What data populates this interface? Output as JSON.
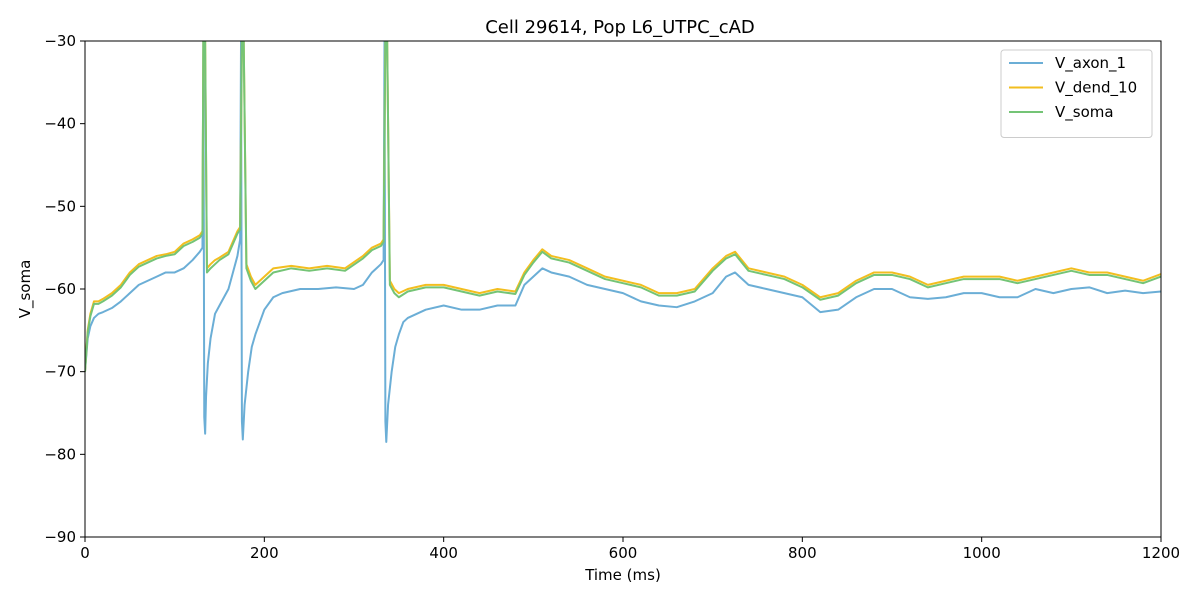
{
  "chart_data": {
    "type": "line",
    "title": "Cell 29614, Pop L6_UTPC_cAD",
    "xlabel": "Time (ms)",
    "ylabel": "V_soma",
    "xlim": [
      0,
      1200
    ],
    "ylim": [
      -90,
      -30
    ],
    "xticks": [
      0,
      200,
      400,
      600,
      800,
      1000,
      1200
    ],
    "yticks": [
      -90,
      -80,
      -70,
      -60,
      -50,
      -40,
      -30
    ],
    "grid": false,
    "legend_position": "top-right",
    "series": [
      {
        "name": "V_axon_1",
        "color": "#6baed6",
        "x": [
          0,
          3,
          6,
          10,
          15,
          20,
          30,
          40,
          50,
          60,
          70,
          80,
          90,
          100,
          110,
          120,
          128,
          131,
          132,
          133,
          134,
          135,
          137,
          140,
          145,
          150,
          155,
          160,
          165,
          170,
          173,
          174,
          175,
          176,
          178,
          182,
          186,
          190,
          195,
          200,
          210,
          220,
          240,
          260,
          280,
          300,
          310,
          320,
          325,
          330,
          333,
          334,
          335,
          336,
          338,
          342,
          346,
          350,
          355,
          360,
          370,
          380,
          400,
          420,
          440,
          460,
          480,
          490,
          500,
          510,
          520,
          540,
          560,
          580,
          600,
          620,
          640,
          660,
          680,
          700,
          715,
          725,
          740,
          760,
          780,
          800,
          820,
          840,
          860,
          880,
          900,
          920,
          940,
          960,
          980,
          1000,
          1020,
          1040,
          1060,
          1080,
          1100,
          1120,
          1140,
          1160,
          1180,
          1200
        ],
        "y": [
          -70,
          -66,
          -64.5,
          -63.5,
          -63,
          -62.8,
          -62.3,
          -61.5,
          -60.5,
          -59.5,
          -59,
          -58.5,
          -58,
          -58,
          -57.5,
          -56.5,
          -55.5,
          -55,
          -30,
          -75.5,
          -77.5,
          -73,
          -69,
          -66,
          -63,
          -62,
          -61,
          -60,
          -58,
          -56,
          -54,
          -30,
          -76,
          -78.2,
          -74,
          -70,
          -67,
          -65.5,
          -64,
          -62.5,
          -61,
          -60.5,
          -60,
          -60,
          -59.8,
          -60,
          -59.5,
          -58,
          -57.5,
          -57,
          -56.5,
          -30,
          -76,
          -78.5,
          -74,
          -70,
          -67,
          -65.5,
          -64,
          -63.5,
          -63,
          -62.5,
          -62,
          -62.5,
          -62.5,
          -62,
          -62,
          -59.5,
          -58.5,
          -57.5,
          -58,
          -58.5,
          -59.5,
          -60,
          -60.5,
          -61.5,
          -62,
          -62.2,
          -61.5,
          -60.5,
          -58.5,
          -58,
          -59.5,
          -60,
          -60.5,
          -61,
          -62.8,
          -62.5,
          -61,
          -60,
          -60,
          -61,
          -61.2,
          -61,
          -60.5,
          -60.5,
          -61,
          -61,
          -60,
          -60.5,
          -60,
          -59.8,
          -60.5,
          -60.2,
          -60.5,
          -60.3
        ]
      },
      {
        "name": "V_dend_10",
        "color": "#f2be1f",
        "x": [
          0,
          3,
          6,
          10,
          15,
          20,
          30,
          40,
          50,
          60,
          70,
          80,
          90,
          100,
          110,
          120,
          128,
          131,
          132,
          134,
          136,
          140,
          145,
          150,
          160,
          170,
          173,
          175,
          177,
          180,
          185,
          190,
          200,
          210,
          230,
          250,
          270,
          290,
          310,
          320,
          330,
          333,
          335,
          337,
          340,
          345,
          350,
          360,
          380,
          400,
          420,
          440,
          460,
          480,
          490,
          500,
          510,
          520,
          540,
          560,
          580,
          600,
          620,
          640,
          660,
          680,
          700,
          715,
          725,
          740,
          760,
          780,
          800,
          820,
          840,
          860,
          880,
          900,
          920,
          940,
          960,
          980,
          1000,
          1020,
          1040,
          1060,
          1080,
          1100,
          1120,
          1140,
          1160,
          1180,
          1200
        ],
        "y": [
          -70,
          -65,
          -63,
          -61.5,
          -61.5,
          -61.2,
          -60.5,
          -59.5,
          -58,
          -57,
          -56.5,
          -56,
          -55.8,
          -55.5,
          -54.5,
          -54,
          -53.5,
          -53,
          -30,
          -30,
          -57.5,
          -57,
          -56.5,
          -56.2,
          -55.5,
          -53,
          -52.5,
          -30,
          -30,
          -57,
          -58.5,
          -59.5,
          -58.5,
          -57.5,
          -57.2,
          -57.5,
          -57.2,
          -57.5,
          -56,
          -55,
          -54.5,
          -54,
          -30,
          -30,
          -59,
          -60,
          -60.5,
          -60,
          -59.5,
          -59.5,
          -60,
          -60.5,
          -60,
          -60.3,
          -58,
          -56.5,
          -55.2,
          -56,
          -56.5,
          -57.5,
          -58.5,
          -59,
          -59.5,
          -60.5,
          -60.5,
          -60,
          -57.5,
          -56,
          -55.5,
          -57.5,
          -58,
          -58.5,
          -59.5,
          -61,
          -60.5,
          -59,
          -58,
          -58,
          -58.5,
          -59.5,
          -59,
          -58.5,
          -58.5,
          -58.5,
          -59,
          -58.5,
          -58,
          -57.5,
          -58,
          -58,
          -58.5,
          -59,
          -58.2
        ]
      },
      {
        "name": "V_soma",
        "color": "#74c476",
        "x": [
          0,
          3,
          6,
          10,
          15,
          20,
          30,
          40,
          50,
          60,
          70,
          80,
          90,
          100,
          110,
          120,
          128,
          131,
          132,
          134,
          136,
          140,
          145,
          150,
          160,
          170,
          173,
          175,
          177,
          180,
          185,
          190,
          200,
          210,
          230,
          250,
          270,
          290,
          310,
          320,
          330,
          333,
          335,
          337,
          340,
          345,
          350,
          360,
          380,
          400,
          420,
          440,
          460,
          480,
          490,
          500,
          510,
          520,
          540,
          560,
          580,
          600,
          620,
          640,
          660,
          680,
          700,
          715,
          725,
          740,
          760,
          780,
          800,
          820,
          840,
          860,
          880,
          900,
          920,
          940,
          960,
          980,
          1000,
          1020,
          1040,
          1060,
          1080,
          1100,
          1120,
          1140,
          1160,
          1180,
          1200
        ],
        "y": [
          -70,
          -65.3,
          -63.3,
          -61.8,
          -61.8,
          -61.5,
          -60.8,
          -59.8,
          -58.3,
          -57.3,
          -56.8,
          -56.3,
          -56,
          -55.8,
          -54.8,
          -54.3,
          -53.8,
          -53.3,
          -30,
          -30,
          -58,
          -57.5,
          -57,
          -56.5,
          -55.8,
          -53.3,
          -52.8,
          -30,
          -30,
          -57.5,
          -59,
          -60,
          -59,
          -58,
          -57.5,
          -57.8,
          -57.5,
          -57.8,
          -56.3,
          -55.3,
          -54.8,
          -54.3,
          -30,
          -30,
          -59.5,
          -60.5,
          -61,
          -60.3,
          -59.8,
          -59.8,
          -60.3,
          -60.8,
          -60.3,
          -60.6,
          -58.3,
          -56.8,
          -55.5,
          -56.3,
          -56.8,
          -57.8,
          -58.8,
          -59.3,
          -59.8,
          -60.8,
          -60.8,
          -60.3,
          -57.8,
          -56.3,
          -55.8,
          -57.8,
          -58.3,
          -58.8,
          -59.8,
          -61.3,
          -60.8,
          -59.3,
          -58.3,
          -58.3,
          -58.8,
          -59.8,
          -59.3,
          -58.8,
          -58.8,
          -58.8,
          -59.3,
          -58.8,
          -58.3,
          -57.8,
          -58.3,
          -58.3,
          -58.8,
          -59.3,
          -58.5
        ]
      }
    ]
  }
}
